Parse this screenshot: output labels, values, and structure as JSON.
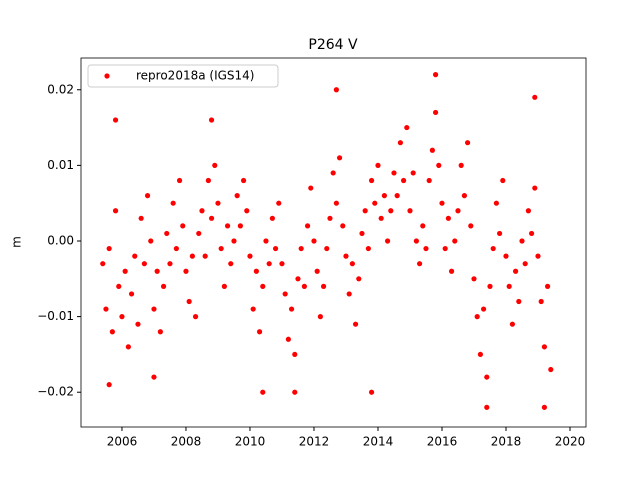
{
  "chart_data": {
    "type": "scatter",
    "title": "P264 V",
    "y_label": "m",
    "x": [
      2005.4,
      2005.5,
      2005.6,
      2005.7,
      2005.8,
      2005.9,
      2006.0,
      2006.1,
      2006.2,
      2006.3,
      2006.4,
      2006.5,
      2006.6,
      2006.7,
      2006.8,
      2006.9,
      2007.0,
      2007.1,
      2007.2,
      2007.3,
      2007.4,
      2007.5,
      2007.6,
      2007.7,
      2007.8,
      2007.9,
      2008.0,
      2008.1,
      2008.2,
      2008.3,
      2008.4,
      2008.5,
      2008.6,
      2008.7,
      2008.8,
      2008.9,
      2009.0,
      2009.1,
      2009.2,
      2009.3,
      2009.4,
      2009.5,
      2009.6,
      2009.7,
      2009.8,
      2009.9,
      2010.0,
      2010.1,
      2010.2,
      2010.3,
      2010.4,
      2010.5,
      2010.6,
      2010.7,
      2010.8,
      2010.9,
      2011.0,
      2011.1,
      2011.2,
      2011.3,
      2011.4,
      2011.5,
      2011.6,
      2011.7,
      2011.8,
      2011.9,
      2012.0,
      2012.1,
      2012.2,
      2012.3,
      2012.4,
      2012.5,
      2012.6,
      2012.7,
      2012.8,
      2012.9,
      2013.0,
      2013.1,
      2013.2,
      2013.3,
      2013.4,
      2013.5,
      2013.6,
      2013.7,
      2013.8,
      2013.9,
      2014.0,
      2014.1,
      2014.2,
      2014.3,
      2014.4,
      2014.5,
      2014.6,
      2014.7,
      2014.8,
      2014.9,
      2015.0,
      2015.1,
      2015.2,
      2015.3,
      2015.4,
      2015.5,
      2015.6,
      2015.7,
      2015.8,
      2015.9,
      2016.0,
      2016.1,
      2016.2,
      2016.3,
      2016.4,
      2016.5,
      2016.6,
      2016.7,
      2016.8,
      2016.9,
      2017.0,
      2017.1,
      2017.2,
      2017.3,
      2017.4,
      2017.5,
      2017.6,
      2017.7,
      2017.8,
      2017.9,
      2018.0,
      2018.1,
      2018.2,
      2018.3,
      2018.4,
      2018.5,
      2018.6,
      2018.7,
      2018.8,
      2018.9,
      2019.0,
      2019.1,
      2019.2,
      2019.3,
      2019.4,
      2005.6,
      2005.8,
      2007.0,
      2008.8,
      2010.4,
      2011.4,
      2012.7,
      2013.8,
      2015.8,
      2017.4,
      2018.9,
      2019.2
    ],
    "series": [
      {
        "name": "repro2018a (IGS14)",
        "color": "#ff0000",
        "values": [
          -0.003,
          -0.009,
          -0.001,
          -0.012,
          0.004,
          -0.006,
          -0.01,
          -0.004,
          -0.014,
          -0.007,
          -0.002,
          -0.011,
          0.003,
          -0.003,
          0.006,
          0.0,
          -0.009,
          -0.004,
          -0.012,
          -0.006,
          0.001,
          -0.003,
          0.005,
          -0.001,
          0.008,
          0.002,
          -0.004,
          -0.008,
          -0.002,
          -0.01,
          0.001,
          0.004,
          -0.002,
          0.008,
          0.003,
          0.01,
          0.005,
          -0.001,
          -0.006,
          0.002,
          -0.003,
          0.0,
          0.006,
          0.002,
          0.008,
          0.004,
          -0.002,
          -0.009,
          -0.004,
          -0.012,
          -0.006,
          0.0,
          -0.003,
          0.003,
          -0.001,
          0.005,
          -0.003,
          -0.007,
          -0.013,
          -0.009,
          -0.015,
          -0.005,
          -0.001,
          -0.006,
          0.002,
          0.007,
          0.0,
          -0.004,
          -0.01,
          -0.006,
          -0.001,
          0.003,
          0.009,
          0.005,
          0.011,
          0.002,
          -0.002,
          -0.007,
          -0.003,
          -0.011,
          -0.005,
          0.001,
          0.004,
          -0.001,
          0.008,
          0.005,
          0.01,
          0.003,
          0.006,
          0.0,
          0.004,
          0.009,
          0.006,
          0.013,
          0.008,
          0.015,
          0.004,
          0.009,
          0.0,
          -0.003,
          0.002,
          -0.001,
          0.008,
          0.012,
          0.017,
          0.01,
          0.005,
          -0.001,
          0.003,
          -0.004,
          0.0,
          0.004,
          0.01,
          0.006,
          0.013,
          0.002,
          -0.005,
          -0.01,
          -0.015,
          -0.009,
          -0.018,
          -0.006,
          -0.001,
          0.005,
          0.001,
          0.008,
          -0.002,
          -0.006,
          -0.011,
          -0.004,
          -0.008,
          0.0,
          -0.003,
          0.004,
          0.001,
          0.007,
          -0.002,
          -0.008,
          -0.014,
          -0.006,
          -0.017,
          -0.019,
          0.016,
          -0.018,
          0.016,
          -0.02,
          -0.02,
          0.02,
          -0.02,
          0.022,
          -0.022,
          0.019,
          -0.022
        ]
      }
    ],
    "xlim": [
      2004.72,
      2020.5
    ],
    "xticks": [
      2006,
      2008,
      2010,
      2012,
      2014,
      2016,
      2018,
      2020
    ],
    "ylim": [
      -0.0246,
      0.0242
    ],
    "yticks": [
      {
        "value": -0.02,
        "label": "−0.02"
      },
      {
        "value": -0.01,
        "label": "−0.01"
      },
      {
        "value": 0,
        "label": "0.00"
      },
      0.01,
      0.02
    ],
    "legend": "upper left"
  }
}
